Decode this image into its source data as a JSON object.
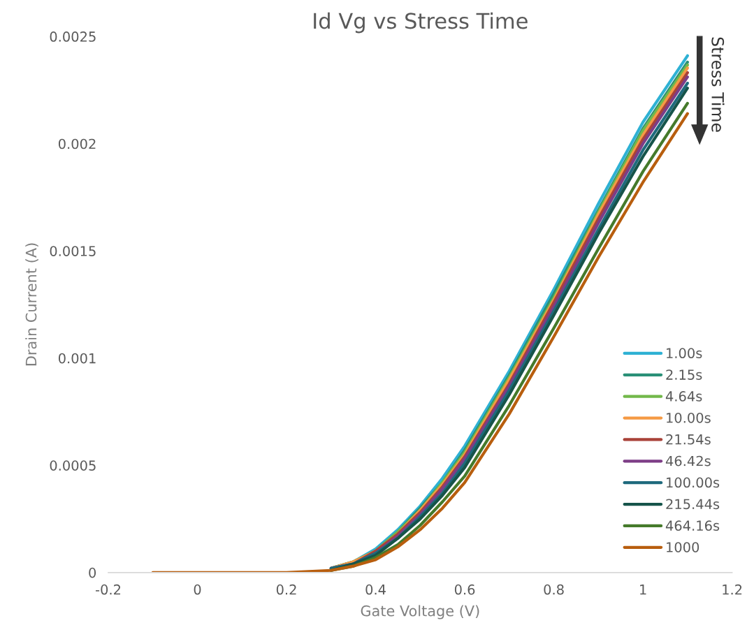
{
  "chart_data": {
    "type": "line",
    "title": "Id Vg vs Stress Time",
    "xlabel": "Gate Voltage (V)",
    "ylabel": "Drain Current (A)",
    "x": [
      -0.1,
      0.2,
      0.3,
      0.35,
      0.4,
      0.45,
      0.5,
      0.55,
      0.6,
      0.7,
      0.8,
      0.9,
      1,
      1.1
    ],
    "series": [
      {
        "name": "1.00s",
        "color": "#2eb1d4",
        "values": [
          null,
          null,
          2e-05,
          5e-05,
          0.00011,
          0.0002,
          0.00031,
          0.00044,
          0.00059,
          0.00094,
          0.00132,
          0.00172,
          0.0021,
          0.00241
        ]
      },
      {
        "name": "2.15s",
        "color": "#2a9077",
        "values": [
          null,
          null,
          2e-05,
          5e-05,
          0.0001,
          0.00019,
          0.0003,
          0.00042,
          0.00057,
          0.00092,
          0.0013,
          0.00169,
          0.00207,
          0.00238
        ]
      },
      {
        "name": "4.64s",
        "color": "#72b84a",
        "values": [
          null,
          null,
          2e-05,
          5e-05,
          0.0001,
          0.00019,
          0.00029,
          0.00042,
          0.00056,
          0.00091,
          0.00128,
          0.00168,
          0.00206,
          0.002367
        ]
      },
      {
        "name": "10.00s",
        "color": "#f59a44",
        "values": [
          null,
          null,
          2e-05,
          5e-05,
          0.0001,
          0.00018,
          0.00029,
          0.00041,
          0.00055,
          0.0009,
          0.00127,
          0.00167,
          0.00204,
          0.002353
        ]
      },
      {
        "name": "21.54s",
        "color": "#a94239",
        "values": [
          null,
          null,
          2e-05,
          4e-05,
          0.0001,
          0.00018,
          0.00028,
          0.0004,
          0.00054,
          0.00088,
          0.00126,
          0.00165,
          0.00202,
          0.002331
        ]
      },
      {
        "name": "46.42s",
        "color": "#7d3d86",
        "values": [
          null,
          null,
          2e-05,
          4e-05,
          9e-05,
          0.00017,
          0.00027,
          0.00039,
          0.00053,
          0.00087,
          0.00124,
          0.00163,
          0.002,
          0.002311
        ]
      },
      {
        "name": "100.00s",
        "color": "#1f6a7d",
        "values": [
          null,
          null,
          2e-05,
          4e-05,
          9e-05,
          0.00016,
          0.00026,
          0.00037,
          0.00051,
          0.00085,
          0.00122,
          0.0016,
          0.00197,
          0.002282
        ]
      },
      {
        "name": "215.44s",
        "color": "#16544a",
        "values": [
          null,
          null,
          1e-05,
          4e-05,
          8e-05,
          0.00016,
          0.00025,
          0.00036,
          0.00049,
          0.00083,
          0.0012,
          0.00158,
          0.00194,
          0.002259
        ]
      },
      {
        "name": "464.16s",
        "color": "#457a2b",
        "values": [
          null,
          null,
          1e-05,
          3e-05,
          7e-05,
          0.00013,
          0.00022,
          0.00033,
          0.00045,
          0.00078,
          0.00114,
          0.00151,
          0.00187,
          0.002188
        ]
      },
      {
        "name": "1000",
        "color": "#b85e0e",
        "values": [
          0,
          0,
          1e-05,
          3e-05,
          6e-05,
          0.00012,
          0.0002,
          0.0003,
          0.00042,
          0.00074,
          0.0011,
          0.00147,
          0.00182,
          0.00214
        ]
      }
    ],
    "xlim": [
      -0.2,
      1.2
    ],
    "xticks": [
      -0.2,
      0,
      0.2,
      0.4,
      0.6,
      0.8,
      1,
      1.2
    ],
    "ylim": [
      0,
      0.0025
    ],
    "yticks": [
      0,
      0.0005,
      0.001,
      0.0015,
      0.002,
      0.0025
    ],
    "grid": false,
    "legend": "bottom right",
    "marker": "none",
    "line_style": "solid",
    "annotations": [
      "Stress Time"
    ]
  }
}
